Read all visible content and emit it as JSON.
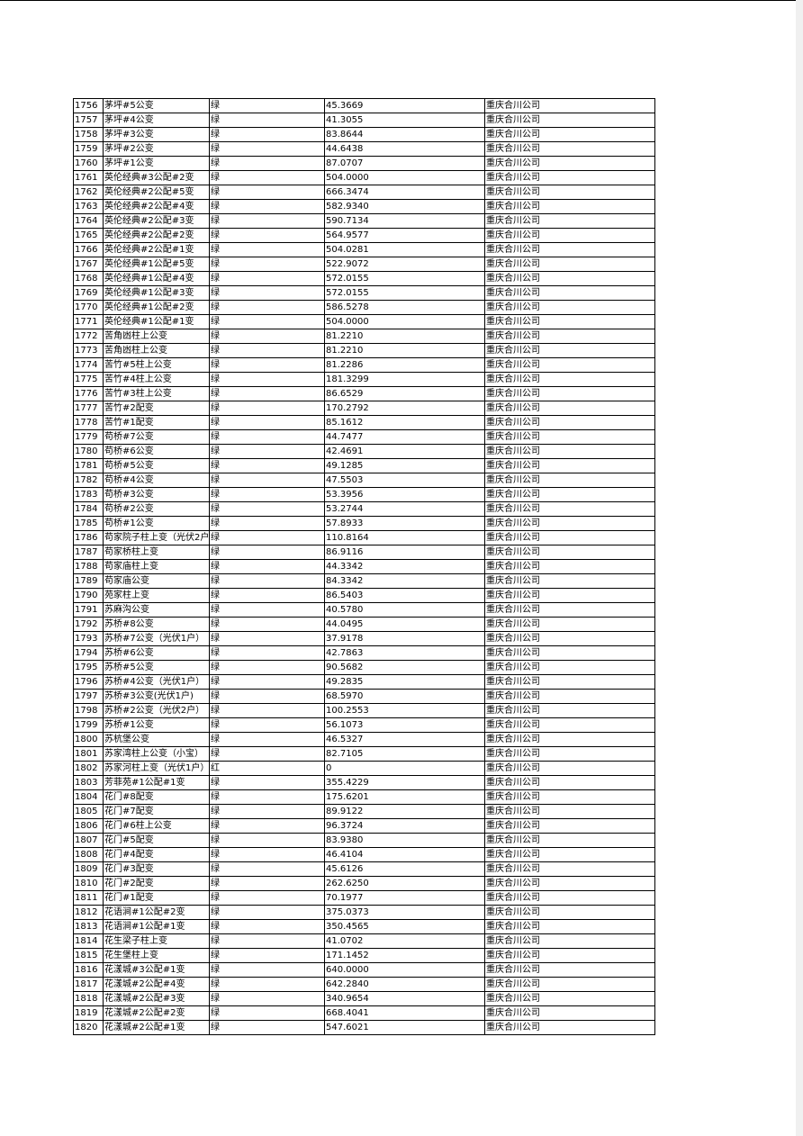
{
  "table": {
    "rows": [
      [
        "1756",
        "茅坪#5公变",
        "绿",
        "45.3669",
        "重庆合川公司"
      ],
      [
        "1757",
        "茅坪#4公变",
        "绿",
        "41.3055",
        "重庆合川公司"
      ],
      [
        "1758",
        "茅坪#3公变",
        "绿",
        "83.8644",
        "重庆合川公司"
      ],
      [
        "1759",
        "茅坪#2公变",
        "绿",
        "44.6438",
        "重庆合川公司"
      ],
      [
        "1760",
        "茅坪#1公变",
        "绿",
        "87.0707",
        "重庆合川公司"
      ],
      [
        "1761",
        "英伦经典#3公配#2变",
        "绿",
        "504.0000",
        "重庆合川公司"
      ],
      [
        "1762",
        "英伦经典#2公配#5变",
        "绿",
        "666.3474",
        "重庆合川公司"
      ],
      [
        "1763",
        "英伦经典#2公配#4变",
        "绿",
        "582.9340",
        "重庆合川公司"
      ],
      [
        "1764",
        "英伦经典#2公配#3变",
        "绿",
        "590.7134",
        "重庆合川公司"
      ],
      [
        "1765",
        "英伦经典#2公配#2变",
        "绿",
        "564.9577",
        "重庆合川公司"
      ],
      [
        "1766",
        "英伦经典#2公配#1变",
        "绿",
        "504.0281",
        "重庆合川公司"
      ],
      [
        "1767",
        "英伦经典#1公配#5变",
        "绿",
        "522.9072",
        "重庆合川公司"
      ],
      [
        "1768",
        "英伦经典#1公配#4变",
        "绿",
        "572.0155",
        "重庆合川公司"
      ],
      [
        "1769",
        "英伦经典#1公配#3变",
        "绿",
        "572.0155",
        "重庆合川公司"
      ],
      [
        "1770",
        "英伦经典#1公配#2变",
        "绿",
        "586.5278",
        "重庆合川公司"
      ],
      [
        "1771",
        "英伦经典#1公配#1变",
        "绿",
        "504.0000",
        "重庆合川公司"
      ],
      [
        "1772",
        "苦角凼柱上公变",
        "绿",
        "81.2210",
        "重庆合川公司"
      ],
      [
        "1773",
        "苦角凼柱上公变",
        "绿",
        "81.2210",
        "重庆合川公司"
      ],
      [
        "1774",
        "苦竹#5柱上公变",
        "绿",
        "81.2286",
        "重庆合川公司"
      ],
      [
        "1775",
        "苦竹#4柱上公变",
        "绿",
        "181.3299",
        "重庆合川公司"
      ],
      [
        "1776",
        "苦竹#3柱上公变",
        "绿",
        "86.6529",
        "重庆合川公司"
      ],
      [
        "1777",
        "苦竹#2配变",
        "绿",
        "170.2792",
        "重庆合川公司"
      ],
      [
        "1778",
        "苦竹#1配变",
        "绿",
        "85.1612",
        "重庆合川公司"
      ],
      [
        "1779",
        "苟桥#7公变",
        "绿",
        "44.7477",
        "重庆合川公司"
      ],
      [
        "1780",
        "苟桥#6公变",
        "绿",
        "42.4691",
        "重庆合川公司"
      ],
      [
        "1781",
        "苟桥#5公变",
        "绿",
        "49.1285",
        "重庆合川公司"
      ],
      [
        "1782",
        "苟桥#4公变",
        "绿",
        "47.5503",
        "重庆合川公司"
      ],
      [
        "1783",
        "苟桥#3公变",
        "绿",
        "53.3956",
        "重庆合川公司"
      ],
      [
        "1784",
        "苟桥#2公变",
        "绿",
        "53.2744",
        "重庆合川公司"
      ],
      [
        "1785",
        "苟桥#1公变",
        "绿",
        "57.8933",
        "重庆合川公司"
      ],
      [
        "1786",
        "苟家院子柱上变（光伏2户",
        "绿",
        "110.8164",
        "重庆合川公司"
      ],
      [
        "1787",
        "苟家桥柱上变",
        "绿",
        "86.9116",
        "重庆合川公司"
      ],
      [
        "1788",
        "苟家庙柱上变",
        "绿",
        "44.3342",
        "重庆合川公司"
      ],
      [
        "1789",
        "苟家庙公变",
        "绿",
        "84.3342",
        "重庆合川公司"
      ],
      [
        "1790",
        "苑家柱上变",
        "绿",
        "86.5403",
        "重庆合川公司"
      ],
      [
        "1791",
        "苏麻沟公变",
        "绿",
        "40.5780",
        "重庆合川公司"
      ],
      [
        "1792",
        "苏桥#8公变",
        "绿",
        "44.0495",
        "重庆合川公司"
      ],
      [
        "1793",
        "苏桥#7公变（光伏1户）",
        "绿",
        "37.9178",
        "重庆合川公司"
      ],
      [
        "1794",
        "苏桥#6公变",
        "绿",
        "42.7863",
        "重庆合川公司"
      ],
      [
        "1795",
        "苏桥#5公变",
        "绿",
        "90.5682",
        "重庆合川公司"
      ],
      [
        "1796",
        "苏桥#4公变（光伏1户）",
        "绿",
        "49.2835",
        "重庆合川公司"
      ],
      [
        "1797",
        "苏桥#3公变(光伏1户)",
        "绿",
        "68.5970",
        "重庆合川公司"
      ],
      [
        "1798",
        "苏桥#2公变（光伏2户）",
        "绿",
        "100.2553",
        "重庆合川公司"
      ],
      [
        "1799",
        "苏桥#1公变",
        "绿",
        "56.1073",
        "重庆合川公司"
      ],
      [
        "1800",
        "苏杭堡公变",
        "绿",
        "46.5327",
        "重庆合川公司"
      ],
      [
        "1801",
        "苏家湾柱上公变（小宝）",
        "绿",
        "82.7105",
        "重庆合川公司"
      ],
      [
        "1802",
        "苏家河柱上变（光伏1户）",
        "红",
        "0",
        "重庆合川公司"
      ],
      [
        "1803",
        "芳菲苑#1公配#1变",
        "绿",
        "355.4229",
        "重庆合川公司"
      ],
      [
        "1804",
        "花门#8配变",
        "绿",
        "175.6201",
        "重庆合川公司"
      ],
      [
        "1805",
        "花门#7配变",
        "绿",
        "89.9122",
        "重庆合川公司"
      ],
      [
        "1806",
        "花门#6柱上公变",
        "绿",
        "96.3724",
        "重庆合川公司"
      ],
      [
        "1807",
        "花门#5配变",
        "绿",
        "83.9380",
        "重庆合川公司"
      ],
      [
        "1808",
        "花门#4配变",
        "绿",
        "46.4104",
        "重庆合川公司"
      ],
      [
        "1809",
        "花门#3配变",
        "绿",
        "45.6126",
        "重庆合川公司"
      ],
      [
        "1810",
        "花门#2配变",
        "绿",
        "262.6250",
        "重庆合川公司"
      ],
      [
        "1811",
        "花门#1配变",
        "绿",
        "70.1977",
        "重庆合川公司"
      ],
      [
        "1812",
        "花语涧#1公配#2变",
        "绿",
        "375.0373",
        "重庆合川公司"
      ],
      [
        "1813",
        "花语涧#1公配#1变",
        "绿",
        "350.4565",
        "重庆合川公司"
      ],
      [
        "1814",
        "花生梁子柱上变",
        "绿",
        "41.0702",
        "重庆合川公司"
      ],
      [
        "1815",
        "花生堡柱上变",
        "绿",
        "171.1452",
        "重庆合川公司"
      ],
      [
        "1816",
        "花漾城#3公配#1变",
        "绿",
        "640.0000",
        "重庆合川公司"
      ],
      [
        "1817",
        "花漾城#2公配#4变",
        "绿",
        "642.2840",
        "重庆合川公司"
      ],
      [
        "1818",
        "花漾城#2公配#3变",
        "绿",
        "340.9654",
        "重庆合川公司"
      ],
      [
        "1819",
        "花漾城#2公配#2变",
        "绿",
        "668.4041",
        "重庆合川公司"
      ],
      [
        "1820",
        "花漾城#2公配#1变",
        "绿",
        "547.6021",
        "重庆合川公司"
      ]
    ]
  }
}
